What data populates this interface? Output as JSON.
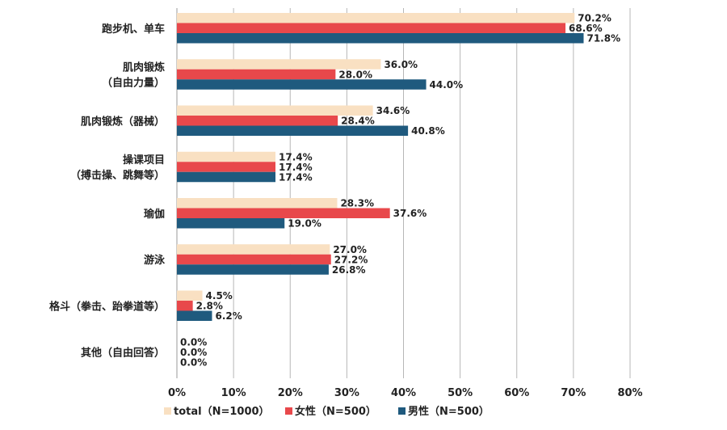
{
  "chart_data": {
    "type": "bar",
    "orientation": "horizontal",
    "categories": [
      [
        "跑步机、单车"
      ],
      [
        "肌肉锻炼",
        "（自由力量）"
      ],
      [
        "肌肉锻炼（器械）"
      ],
      [
        "操课项目",
        "（搏击操、跳舞等）"
      ],
      [
        "瑜伽"
      ],
      [
        "游泳"
      ],
      [
        "格斗（拳击、跆拳道等）"
      ],
      [
        "其他（自由回答）"
      ]
    ],
    "series": [
      {
        "name": "total（N=1000）",
        "color": "#F9E0C2",
        "values": [
          70.2,
          36.0,
          34.6,
          17.4,
          28.3,
          27.0,
          4.5,
          0.0
        ],
        "labels": [
          "70.2%",
          "36.0%",
          "34.6%",
          "17.4%",
          "28.3%",
          "27.0%",
          "4.5%",
          "0.0%"
        ]
      },
      {
        "name": "女性（N=500）",
        "color": "#E8484B",
        "values": [
          68.6,
          28.0,
          28.4,
          17.4,
          37.6,
          27.2,
          2.8,
          0.0
        ],
        "labels": [
          "68.6%",
          "28.0%",
          "28.4%",
          "17.4%",
          "37.6%",
          "27.2%",
          "2.8%",
          "0.0%"
        ]
      },
      {
        "name": "男性（N=500）",
        "color": "#1F5A7E",
        "values": [
          71.8,
          44.0,
          40.8,
          17.4,
          19.0,
          26.8,
          6.2,
          0.0
        ],
        "labels": [
          "71.8%",
          "44.0%",
          "40.8%",
          "17.4%",
          "19.0%",
          "26.8%",
          "6.2%",
          "0.0%"
        ]
      }
    ],
    "xlim": [
      0,
      80
    ],
    "xticks": [
      0,
      10,
      20,
      30,
      40,
      50,
      60,
      70,
      80
    ],
    "xtick_labels": [
      "0%",
      "10%",
      "20%",
      "30%",
      "40%",
      "50%",
      "60%",
      "70%",
      "80%"
    ],
    "grid": true,
    "legend_position": "bottom",
    "title": "",
    "xlabel": "",
    "ylabel": ""
  }
}
